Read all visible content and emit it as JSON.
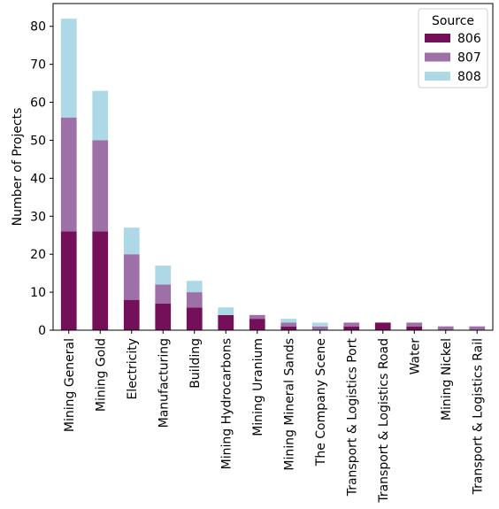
{
  "chart_data": {
    "type": "bar",
    "stacked": true,
    "title": "",
    "xlabel": "",
    "ylabel": "Number of Projects",
    "ylim": [
      0,
      86
    ],
    "yticks": [
      0,
      10,
      20,
      30,
      40,
      50,
      60,
      70,
      80
    ],
    "grid": false,
    "legend": {
      "title": "Source",
      "placement": "top-right"
    },
    "categories": [
      "Mining General",
      "Mining Gold",
      "Electricity",
      "Manufacturing",
      "Building",
      "Mining Hydrocarbons",
      "Mining Uranium",
      "Mining Mineral Sands",
      "The Company Scene",
      "Transport & Logistics Port",
      "Transport & Logistics Road",
      "Water",
      "Mining Nickel",
      "Transport & Logistics Rail"
    ],
    "series": [
      {
        "name": "806",
        "color": "#741059",
        "values": [
          26,
          26,
          8,
          7,
          6,
          4,
          3,
          1,
          0,
          1,
          2,
          1,
          0,
          0
        ]
      },
      {
        "name": "807",
        "color": "#9e70a8",
        "values": [
          30,
          24,
          12,
          5,
          4,
          0,
          1,
          1,
          1,
          1,
          0,
          1,
          1,
          1
        ]
      },
      {
        "name": "808",
        "color": "#add8e6",
        "values": [
          26,
          13,
          7,
          5,
          3,
          2,
          0,
          1,
          1,
          0,
          0,
          0,
          0,
          0
        ]
      }
    ]
  }
}
